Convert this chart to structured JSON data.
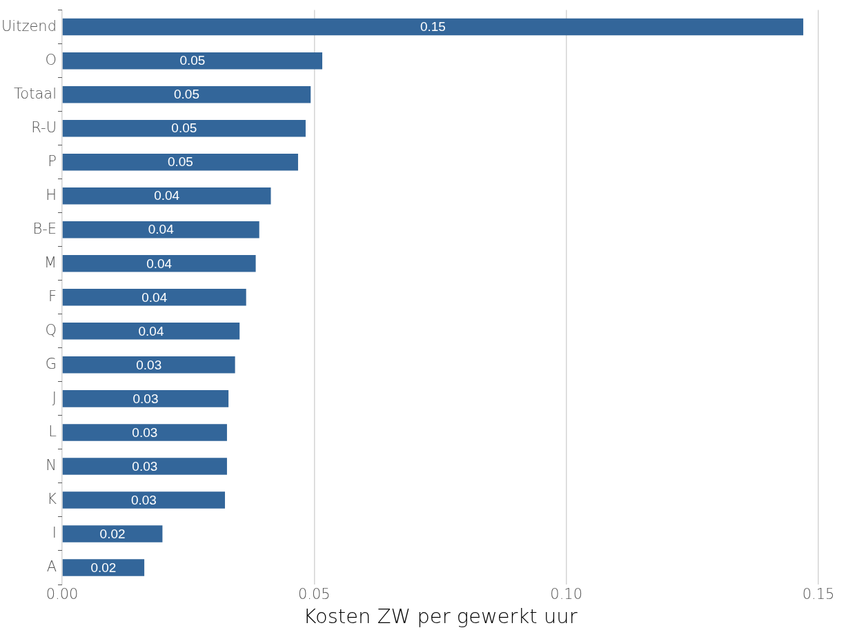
{
  "chart_data": {
    "type": "bar",
    "orientation": "horizontal",
    "xlabel": "Kosten ZW per gewerkt uur",
    "categories": [
      "Uitzend",
      "O",
      "Totaal",
      "R-U",
      "P",
      "H",
      "B-E",
      "M",
      "F",
      "Q",
      "G",
      "J",
      "L",
      "N",
      "K",
      "I",
      "A"
    ],
    "values": [
      0.147,
      0.0516,
      0.0493,
      0.0483,
      0.0468,
      0.0414,
      0.0391,
      0.0384,
      0.0365,
      0.0352,
      0.0343,
      0.033,
      0.0327,
      0.0327,
      0.0323,
      0.0199,
      0.0163
    ],
    "value_labels": [
      "0.15",
      "0.05",
      "0.05",
      "0.05",
      "0.05",
      "0.04",
      "0.04",
      "0.04",
      "0.04",
      "0.04",
      "0.03",
      "0.03",
      "0.03",
      "0.03",
      "0.03",
      "0.02",
      "0.02"
    ],
    "color": "#33669a",
    "xlim": [
      0,
      0.15
    ],
    "xticks": [
      {
        "value": 0,
        "label": "0.00"
      },
      {
        "value": 0.05,
        "label": "0.05"
      },
      {
        "value": 0.1,
        "label": "0.10"
      },
      {
        "value": 0.15,
        "label": "0.15"
      }
    ],
    "grid": "x",
    "legend": false
  }
}
